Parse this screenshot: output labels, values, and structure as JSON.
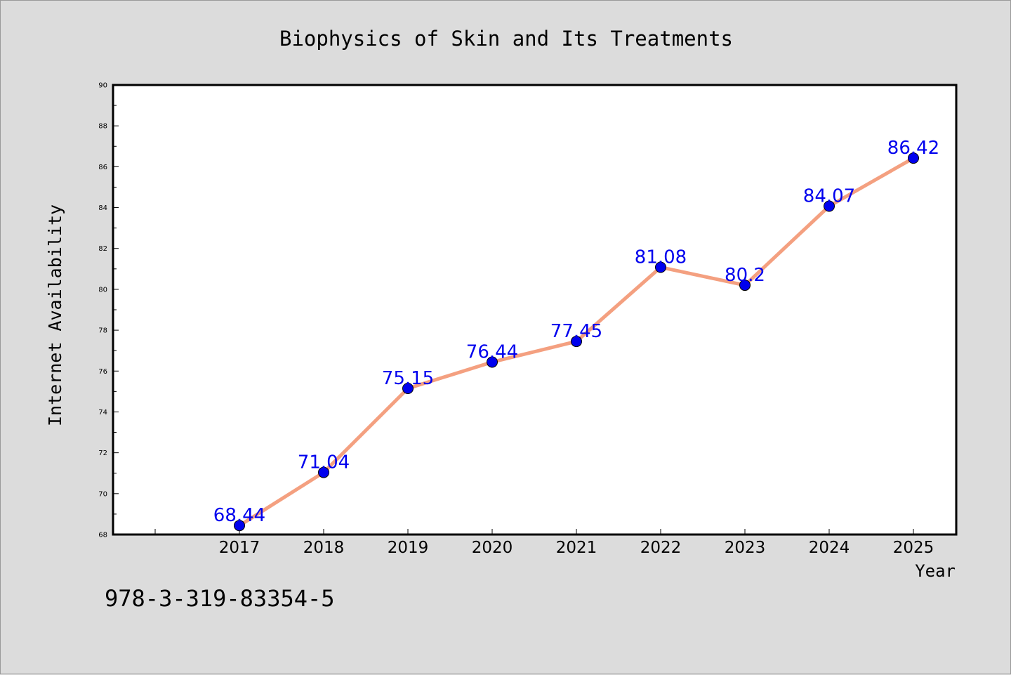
{
  "footer": {
    "code": "978-3-319-83354-5"
  },
  "chart_data": {
    "type": "line",
    "title": "Biophysics of Skin and Its Treatments",
    "xlabel": "Year",
    "ylabel": "Internet Availability",
    "categories": [
      "2017",
      "2018",
      "2019",
      "2020",
      "2021",
      "2022",
      "2023",
      "2024",
      "2025"
    ],
    "series": [
      {
        "values": [
          68.44,
          71.04,
          75.15,
          76.44,
          77.45,
          81.08,
          80.2,
          84.07,
          86.42
        ],
        "labels": [
          "68.44",
          "71.04",
          "75.15",
          "76.44",
          "77.45",
          "81.08",
          "80.2",
          "84.07",
          "86.42"
        ],
        "line_color": "#f4a080",
        "marker_color": "#0000ee",
        "label_color": "#0000ee"
      }
    ],
    "ylim": [
      68,
      90
    ],
    "yticks": [
      "68",
      "70",
      "72",
      "74",
      "76",
      "78",
      "80",
      "82",
      "84",
      "86",
      "88",
      "90"
    ],
    "grid": false,
    "legend": "none"
  }
}
